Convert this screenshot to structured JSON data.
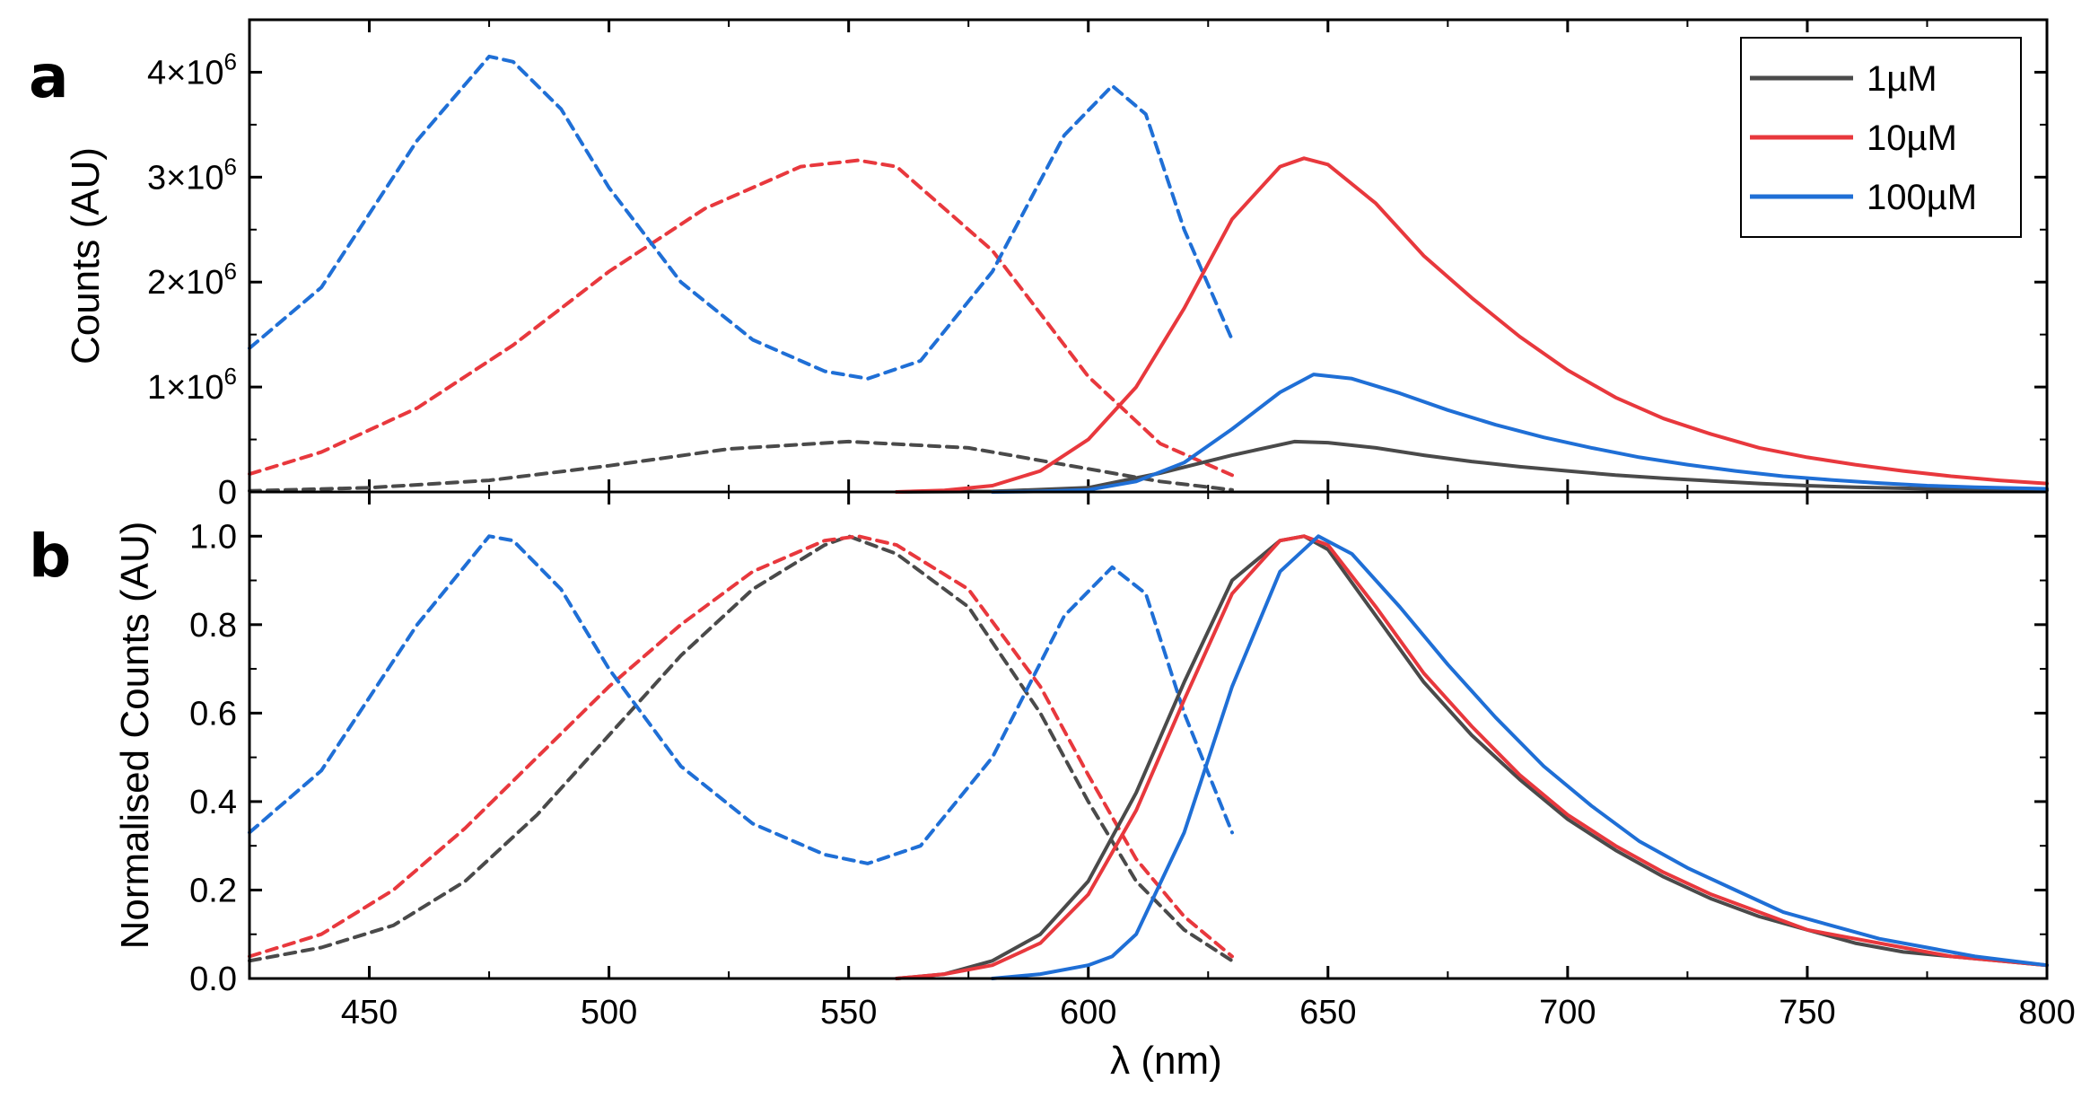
{
  "colors": {
    "1uM": "#4a4a4a",
    "10uM": "#e8383d",
    "100uM": "#1f6fd6",
    "axis": "#000000"
  },
  "chart_data": [
    {
      "panel": "a",
      "type": "line",
      "xlabel": "",
      "ylabel": "Counts (AU)",
      "xlim": [
        425,
        800
      ],
      "ylim": [
        0,
        4500000
      ],
      "x_ticks": [
        450,
        500,
        550,
        600,
        650,
        700,
        750,
        800
      ],
      "y_ticks": [
        {
          "value": 0,
          "label": "0"
        },
        {
          "value": 1000000,
          "label": "1×10",
          "exp": "6"
        },
        {
          "value": 2000000,
          "label": "2×10",
          "exp": "6"
        },
        {
          "value": 3000000,
          "label": "3×10",
          "exp": "6"
        },
        {
          "value": 4000000,
          "label": "4×10",
          "exp": "6"
        }
      ],
      "legend": {
        "position": "top-right",
        "entries": [
          "1µM",
          "10µM",
          "100µM"
        ]
      },
      "series": [
        {
          "name": "1µM",
          "kind": "excitation",
          "style": "dashed",
          "color_key": "1uM",
          "x": [
            425,
            450,
            475,
            500,
            525,
            550,
            575,
            600,
            615,
            630
          ],
          "y": [
            10000,
            40000,
            110000,
            250000,
            410000,
            480000,
            420000,
            220000,
            100000,
            20000
          ]
        },
        {
          "name": "10µM",
          "kind": "excitation",
          "style": "dashed",
          "color_key": "10uM",
          "x": [
            425,
            440,
            460,
            480,
            500,
            520,
            540,
            552,
            560,
            580,
            600,
            615,
            630
          ],
          "y": [
            170000,
            380000,
            800000,
            1400000,
            2100000,
            2700000,
            3100000,
            3160000,
            3100000,
            2300000,
            1100000,
            460000,
            160000
          ]
        },
        {
          "name": "100µM",
          "kind": "excitation",
          "style": "dashed",
          "color_key": "100uM",
          "x": [
            425,
            440,
            460,
            475,
            480,
            490,
            500,
            515,
            530,
            545,
            554,
            565,
            580,
            595,
            605,
            612,
            620,
            630
          ],
          "y": [
            1370000,
            1950000,
            3350000,
            4150000,
            4100000,
            3650000,
            2900000,
            2000000,
            1450000,
            1150000,
            1080000,
            1250000,
            2100000,
            3400000,
            3870000,
            3600000,
            2500000,
            1450000
          ],
          "end_x": 630
        },
        {
          "name": "1µM",
          "kind": "emission",
          "style": "solid",
          "color_key": "1uM",
          "x": [
            560,
            580,
            600,
            615,
            630,
            643,
            650,
            660,
            670,
            680,
            690,
            700,
            710,
            720,
            730,
            740,
            750,
            760,
            770,
            780,
            790,
            800
          ],
          "y": [
            0,
            5000,
            40000,
            180000,
            350000,
            480000,
            470000,
            420000,
            350000,
            290000,
            240000,
            200000,
            160000,
            130000,
            105000,
            80000,
            60000,
            45000,
            35000,
            25000,
            18000,
            14000
          ]
        },
        {
          "name": "10µM",
          "kind": "emission",
          "style": "solid",
          "color_key": "10uM",
          "x": [
            560,
            570,
            580,
            590,
            600,
            610,
            620,
            630,
            640,
            645,
            650,
            660,
            670,
            680,
            690,
            700,
            710,
            720,
            730,
            740,
            750,
            760,
            770,
            780,
            790,
            800
          ],
          "y": [
            0,
            15000,
            60000,
            200000,
            500000,
            1000000,
            1750000,
            2600000,
            3100000,
            3180000,
            3120000,
            2750000,
            2250000,
            1850000,
            1480000,
            1160000,
            900000,
            700000,
            550000,
            420000,
            330000,
            260000,
            200000,
            150000,
            110000,
            80000
          ]
        },
        {
          "name": "100µM",
          "kind": "emission",
          "style": "solid",
          "color_key": "100uM",
          "x": [
            580,
            590,
            600,
            610,
            620,
            630,
            640,
            647,
            655,
            665,
            675,
            685,
            695,
            705,
            715,
            725,
            735,
            745,
            755,
            765,
            775,
            785,
            800
          ],
          "y": [
            0,
            5000,
            20000,
            100000,
            280000,
            600000,
            950000,
            1120000,
            1080000,
            940000,
            780000,
            640000,
            520000,
            420000,
            330000,
            260000,
            200000,
            150000,
            115000,
            85000,
            60000,
            45000,
            30000
          ]
        }
      ]
    },
    {
      "panel": "b",
      "type": "line",
      "xlabel": "λ (nm)",
      "ylabel": "Normalised Counts (AU)",
      "xlim": [
        425,
        800
      ],
      "ylim": [
        0,
        1.1
      ],
      "x_ticks": [
        450,
        500,
        550,
        600,
        650,
        700,
        750,
        800
      ],
      "y_ticks": [
        {
          "value": 0,
          "label": "0.0"
        },
        {
          "value": 0.2,
          "label": "0.2"
        },
        {
          "value": 0.4,
          "label": "0.4"
        },
        {
          "value": 0.6,
          "label": "0.6"
        },
        {
          "value": 0.8,
          "label": "0.8"
        },
        {
          "value": 1.0,
          "label": "1.0"
        }
      ],
      "series": [
        {
          "name": "1µM",
          "kind": "excitation",
          "style": "dashed",
          "color_key": "1uM",
          "x": [
            425,
            440,
            455,
            470,
            485,
            500,
            515,
            530,
            545,
            550,
            560,
            575,
            590,
            600,
            610,
            620,
            630
          ],
          "y": [
            0.04,
            0.07,
            0.12,
            0.22,
            0.37,
            0.55,
            0.73,
            0.88,
            0.98,
            1.0,
            0.96,
            0.84,
            0.6,
            0.4,
            0.22,
            0.11,
            0.04
          ]
        },
        {
          "name": "10µM",
          "kind": "excitation",
          "style": "dashed",
          "color_key": "10uM",
          "x": [
            425,
            440,
            455,
            470,
            485,
            500,
            515,
            530,
            545,
            552,
            560,
            575,
            590,
            600,
            610,
            620,
            630
          ],
          "y": [
            0.05,
            0.1,
            0.2,
            0.34,
            0.5,
            0.66,
            0.8,
            0.92,
            0.99,
            1.0,
            0.98,
            0.88,
            0.66,
            0.46,
            0.27,
            0.14,
            0.05
          ]
        },
        {
          "name": "100µM",
          "kind": "excitation",
          "style": "dashed",
          "color_key": "100uM",
          "x": [
            425,
            440,
            460,
            475,
            480,
            490,
            500,
            515,
            530,
            545,
            554,
            565,
            580,
            595,
            605,
            612,
            620,
            630
          ],
          "y": [
            0.33,
            0.47,
            0.8,
            1.0,
            0.99,
            0.88,
            0.7,
            0.48,
            0.35,
            0.28,
            0.26,
            0.3,
            0.5,
            0.82,
            0.93,
            0.87,
            0.6,
            0.33
          ]
        },
        {
          "name": "1µM",
          "kind": "emission",
          "style": "solid",
          "color_key": "1uM",
          "x": [
            560,
            570,
            580,
            590,
            600,
            610,
            620,
            630,
            640,
            645,
            650,
            660,
            670,
            680,
            690,
            700,
            710,
            720,
            730,
            740,
            750,
            760,
            770,
            780,
            790,
            800
          ],
          "y": [
            0.0,
            0.01,
            0.04,
            0.1,
            0.22,
            0.42,
            0.67,
            0.9,
            0.99,
            1.0,
            0.97,
            0.82,
            0.67,
            0.55,
            0.45,
            0.36,
            0.29,
            0.23,
            0.18,
            0.14,
            0.11,
            0.08,
            0.06,
            0.05,
            0.04,
            0.03
          ]
        },
        {
          "name": "10µM",
          "kind": "emission",
          "style": "solid",
          "color_key": "10uM",
          "x": [
            560,
            570,
            580,
            590,
            600,
            610,
            620,
            630,
            640,
            645,
            650,
            660,
            670,
            680,
            690,
            700,
            710,
            720,
            730,
            740,
            750,
            760,
            770,
            780,
            790,
            800
          ],
          "y": [
            0.0,
            0.01,
            0.03,
            0.08,
            0.19,
            0.38,
            0.63,
            0.87,
            0.99,
            1.0,
            0.98,
            0.84,
            0.69,
            0.57,
            0.46,
            0.37,
            0.3,
            0.24,
            0.19,
            0.15,
            0.11,
            0.09,
            0.07,
            0.05,
            0.04,
            0.03
          ]
        },
        {
          "name": "100µM",
          "kind": "emission",
          "style": "solid",
          "color_key": "100uM",
          "x": [
            580,
            590,
            600,
            605,
            610,
            620,
            630,
            640,
            648,
            655,
            665,
            675,
            685,
            695,
            705,
            715,
            725,
            735,
            745,
            755,
            765,
            775,
            785,
            800
          ],
          "y": [
            0.0,
            0.01,
            0.03,
            0.05,
            0.1,
            0.33,
            0.66,
            0.92,
            1.0,
            0.96,
            0.84,
            0.71,
            0.59,
            0.48,
            0.39,
            0.31,
            0.25,
            0.2,
            0.15,
            0.12,
            0.09,
            0.07,
            0.05,
            0.03
          ]
        }
      ]
    }
  ]
}
